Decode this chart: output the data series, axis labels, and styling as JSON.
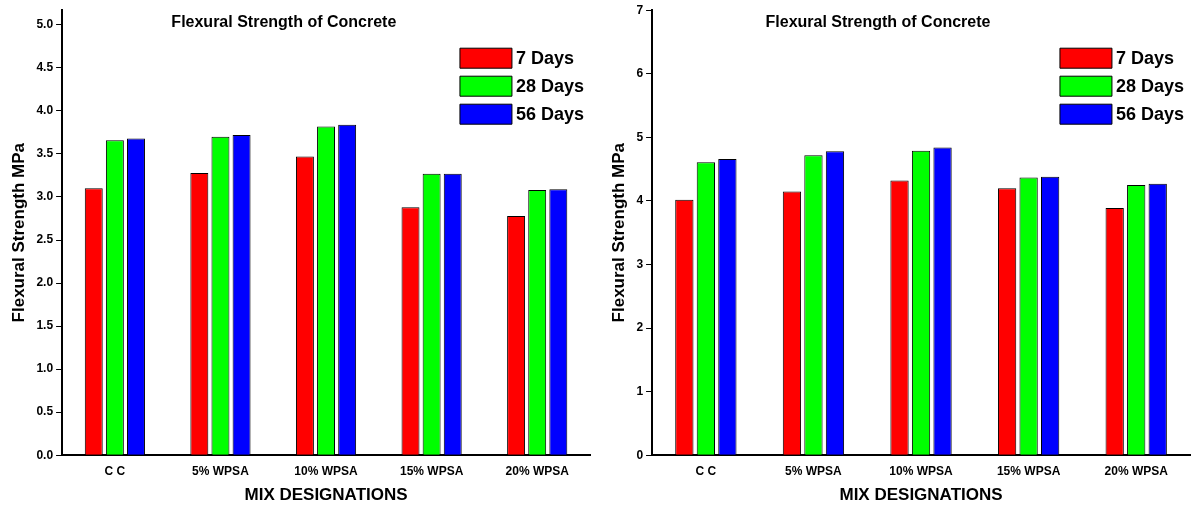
{
  "chart_data": [
    {
      "type": "bar",
      "title": "Flexural Strength of Concrete",
      "xlabel": "MIX DESIGNATIONS",
      "ylabel": "Flexural Strength MPa",
      "categories": [
        "C C",
        "5% WPSA",
        "10% WPSA",
        "15% WPSA",
        "20% WPSA"
      ],
      "series": [
        {
          "name": "7 Days",
          "color": "#ff0000",
          "values": [
            3.1,
            3.28,
            3.47,
            2.88,
            2.78
          ]
        },
        {
          "name": "28 Days",
          "color": "#00ff00",
          "values": [
            3.66,
            3.7,
            3.82,
            3.27,
            3.08
          ]
        },
        {
          "name": "56 Days",
          "color": "#0000ff",
          "values": [
            3.68,
            3.72,
            3.84,
            3.27,
            3.09
          ]
        }
      ],
      "ylim": [
        0,
        5.17
      ],
      "yticks": [
        {
          "value": 0,
          "label": "0.0"
        },
        {
          "value": 0.5,
          "label": "0.5"
        },
        {
          "value": 1,
          "label": "1.0"
        },
        {
          "value": 1.5,
          "label": "1.5"
        },
        {
          "value": 2,
          "label": "2.0"
        },
        {
          "value": 2.5,
          "label": "2.5"
        },
        {
          "value": 3,
          "label": "3.0"
        },
        {
          "value": 3.5,
          "label": "3.5"
        },
        {
          "value": 4,
          "label": "4.0"
        },
        {
          "value": 4.5,
          "label": "4.5"
        },
        {
          "value": 5,
          "label": "5.0"
        }
      ],
      "grid": false,
      "legend": "top right"
    },
    {
      "type": "bar",
      "title": "Flexural Strength of Concrete",
      "xlabel": "MIX DESIGNATIONS",
      "ylabel": "Flexural Strength MPa",
      "categories": [
        "C C",
        "5% WPSA",
        "10% WPSA",
        "15% WPSA",
        "20% WPSA"
      ],
      "series": [
        {
          "name": "7 Days",
          "color": "#ff0000",
          "values": [
            4.02,
            4.15,
            4.32,
            4.2,
            3.89
          ]
        },
        {
          "name": "28 Days",
          "color": "#00ff00",
          "values": [
            4.61,
            4.72,
            4.79,
            4.37,
            4.25
          ]
        },
        {
          "name": "56 Days",
          "color": "#0000ff",
          "values": [
            4.66,
            4.78,
            4.84,
            4.38,
            4.27
          ]
        }
      ],
      "ylim": [
        0,
        7
      ],
      "yticks": [
        0,
        1,
        2,
        3,
        4,
        5,
        6,
        7
      ],
      "grid": false,
      "legend": "top right"
    }
  ]
}
